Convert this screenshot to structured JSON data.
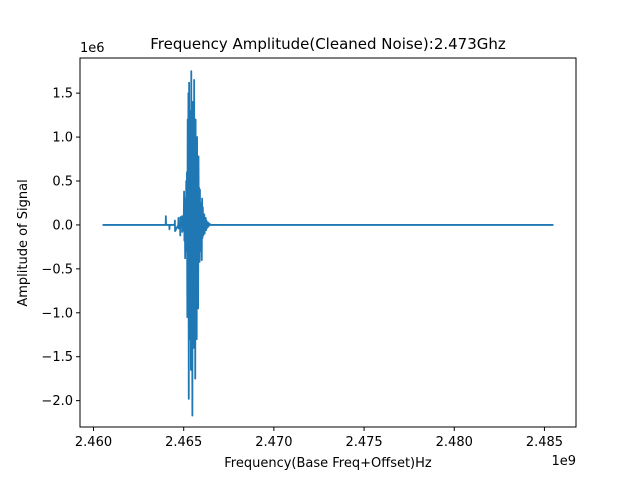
{
  "chart_data": {
    "type": "line",
    "title": "Frequency Amplitude(Cleaned Noise):2.473Ghz",
    "xlabel": "Frequency(Base Freq+Offset)Hz",
    "ylabel": "Amplitude of Signal",
    "x_offset_label": "1e9",
    "y_offset_label": "1e6",
    "x_scale": 1000000000.0,
    "y_scale": 1000000.0,
    "xlim": [
      2.45925,
      2.48675
    ],
    "ylim": [
      -2.3,
      1.9
    ],
    "grid": false,
    "x_ticks": [
      2.46,
      2.465,
      2.47,
      2.475,
      2.48,
      2.485
    ],
    "x_tick_labels": [
      "2.460",
      "2.465",
      "2.470",
      "2.475",
      "2.480",
      "2.485"
    ],
    "y_ticks": [
      1.5,
      1.0,
      0.5,
      0.0,
      -0.5,
      -1.0,
      -1.5,
      -2.0
    ],
    "y_tick_labels": [
      "1.5",
      "1.0",
      "0.5",
      "0.0",
      "−0.5",
      "−1.0",
      "−1.5",
      "−2.0"
    ],
    "line_color": "#1f77b4",
    "series": [
      {
        "x": [
          2.4605,
          2.464,
          2.46401,
          2.46402,
          2.4642,
          2.46421,
          2.46422,
          2.4645,
          2.46451,
          2.46452,
          2.4647,
          2.46471,
          2.46472,
          2.46473,
          2.4648,
          2.46481,
          2.46482,
          2.46483,
          2.4649,
          2.46491,
          2.46492,
          2.465,
          2.46502,
          2.46504,
          2.46506,
          2.46508,
          2.4651,
          2.46512,
          2.46514,
          2.46516,
          2.46518,
          2.4652,
          2.46522,
          2.46524,
          2.46526,
          2.46528,
          2.4653,
          2.46532,
          2.46534,
          2.46536,
          2.46538,
          2.4654,
          2.46542,
          2.46544,
          2.46546,
          2.46548,
          2.4655,
          2.46552,
          2.46554,
          2.46556,
          2.46558,
          2.4656,
          2.46562,
          2.46564,
          2.46566,
          2.46568,
          2.4657,
          2.46572,
          2.46574,
          2.46576,
          2.46578,
          2.4658,
          2.46582,
          2.46584,
          2.46586,
          2.46588,
          2.4659,
          2.46592,
          2.46594,
          2.46596,
          2.46598,
          2.466,
          2.46602,
          2.46604,
          2.46606,
          2.46608,
          2.4661,
          2.46612,
          2.46614,
          2.46616,
          2.46618,
          2.4662,
          2.46622,
          2.46624,
          2.46626,
          2.46628,
          2.4663,
          2.46632,
          2.46634,
          2.46636,
          2.46638,
          2.4664,
          2.46642,
          2.46644,
          2.46646,
          2.46648,
          2.4665,
          2.46652,
          2.46654,
          2.46656,
          2.4666,
          2.4855
        ],
        "y": [
          0.0,
          0.0,
          0.1,
          0.0,
          0.0,
          -0.05,
          0.0,
          0.0,
          0.05,
          -0.07,
          0.0,
          0.08,
          -0.04,
          0.0,
          0.0,
          -0.12,
          0.09,
          0.0,
          0.0,
          0.1,
          -0.08,
          0.0,
          0.38,
          -0.18,
          0.3,
          -0.38,
          0.25,
          -0.3,
          0.5,
          -0.22,
          0.6,
          -1.05,
          1.2,
          -0.8,
          1.5,
          -1.98,
          1.62,
          -1.3,
          0.9,
          -0.6,
          1.3,
          -1.65,
          1.75,
          -1.2,
          1.1,
          -2.17,
          1.4,
          -0.9,
          0.6,
          -1.4,
          1.65,
          -1.1,
          0.8,
          -1.75,
          1.2,
          -0.7,
          0.5,
          -1.3,
          1.0,
          -0.6,
          0.45,
          -0.95,
          0.78,
          -0.35,
          0.42,
          -0.42,
          0.4,
          -0.3,
          0.25,
          -0.2,
          0.15,
          -0.4,
          0.3,
          -0.15,
          0.2,
          -0.12,
          0.1,
          -0.08,
          0.12,
          -0.1,
          0.06,
          -0.05,
          0.08,
          -0.06,
          0.05,
          -0.04,
          0.03,
          -0.02,
          0.03,
          -0.02,
          0.02,
          -0.01,
          0.01,
          0.0,
          0.01,
          0.0,
          0.0,
          0.0,
          0.0,
          0.0,
          0.0,
          0.0
        ]
      }
    ]
  }
}
